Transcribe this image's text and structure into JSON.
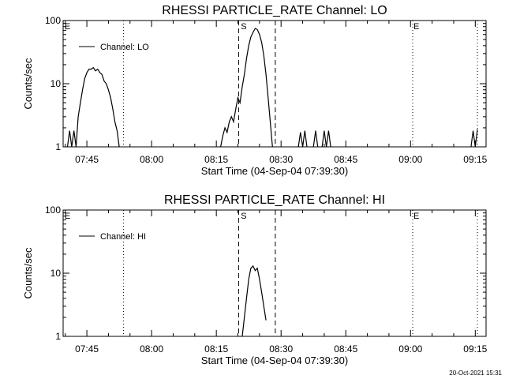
{
  "footer": {
    "timestamp": "20-Oct-2021 15:31"
  },
  "chart_data": [
    {
      "type": "line",
      "title": "RHESSI PARTICLE_RATE Channel: LO",
      "xlabel": "Start Time (04-Sep-04 07:39:30)",
      "ylabel": "Counts/sec",
      "yscale": "log",
      "ylim": [
        1,
        100
      ],
      "xlim": [
        "07:39:30",
        "09:17:30"
      ],
      "x_ticks": [
        "07:45",
        "08:00",
        "08:15",
        "08:30",
        "08:45",
        "09:00",
        "09:15"
      ],
      "y_ticks": [
        "1",
        "10",
        "100"
      ],
      "legend": {
        "label": "Channel: LO",
        "placement": "top-left"
      },
      "markers": [
        {
          "time": "07:53:30",
          "style": "dotted",
          "label": ""
        },
        {
          "time": "08:20:10",
          "style": "dashed",
          "label": ""
        },
        {
          "time": "08:28:40",
          "style": "dashed",
          "label": ""
        },
        {
          "time": "09:00:30",
          "style": "dotted",
          "label": ""
        },
        {
          "time": "09:15:30",
          "style": "dotted",
          "label": ""
        }
      ],
      "marker_labels": [
        {
          "time": "07:39:40",
          "label": "E"
        },
        {
          "time": "08:20:30",
          "label": "S"
        },
        {
          "time": "09:00:30",
          "label": "E"
        }
      ],
      "series": [
        {
          "name": "Channel: LO",
          "color": "#000000",
          "segments": [
            {
              "t": [
                "07:40:30",
                "07:41:00",
                "07:41:30",
                "07:42:00",
                "07:42:30",
                "07:43:00",
                "07:43:30",
                "07:44:00",
                "07:44:30",
                "07:45:00",
                "07:45:30",
                "07:46:00",
                "07:46:30",
                "07:47:00",
                "07:47:30",
                "07:48:00",
                "07:48:30",
                "07:49:00",
                "07:49:30",
                "07:50:00",
                "07:50:30",
                "07:51:00",
                "07:51:30",
                "07:52:00",
                "07:52:30"
              ],
              "v": [
                1,
                1.8,
                1,
                1.8,
                1,
                3,
                5,
                8,
                12,
                15,
                17,
                17,
                18,
                16,
                17,
                15,
                14,
                11,
                10,
                8,
                6,
                4,
                2.5,
                1.8,
                1
              ]
            },
            {
              "t": [
                "08:16:00",
                "08:16:30",
                "08:17:00",
                "08:17:30",
                "08:18:00",
                "08:18:30",
                "08:19:00",
                "08:19:30",
                "08:20:00",
                "08:20:30",
                "08:21:00",
                "08:21:30",
                "08:22:00",
                "08:22:30",
                "08:23:00",
                "08:23:30",
                "08:24:00",
                "08:24:30",
                "08:25:00",
                "08:25:30",
                "08:26:00",
                "08:26:30",
                "08:27:00",
                "08:27:30",
                "08:28:00"
              ],
              "v": [
                1,
                1.5,
                2,
                1.7,
                2.5,
                3,
                2.5,
                4,
                6,
                5,
                9,
                14,
                25,
                40,
                55,
                65,
                75,
                72,
                60,
                45,
                28,
                14,
                6,
                2.5,
                1
              ]
            },
            {
              "t": [
                "08:34:00",
                "08:34:30",
                "08:35:00",
                "08:35:30",
                "08:36:00"
              ],
              "v": [
                1,
                1.7,
                1,
                1.8,
                1
              ]
            },
            {
              "t": [
                "08:37:30",
                "08:38:00",
                "08:38:30"
              ],
              "v": [
                1,
                1.8,
                1
              ]
            },
            {
              "t": [
                "08:39:30",
                "08:40:00",
                "08:40:30",
                "08:41:00",
                "08:41:30"
              ],
              "v": [
                1,
                1.8,
                1,
                1.8,
                1
              ]
            },
            {
              "t": [
                "09:14:00",
                "09:14:30",
                "09:15:00",
                "09:15:30"
              ],
              "v": [
                1,
                1.8,
                1,
                1.9
              ]
            }
          ]
        }
      ]
    },
    {
      "type": "line",
      "title": "RHESSI PARTICLE_RATE Channel: HI",
      "xlabel": "Start Time (04-Sep-04 07:39:30)",
      "ylabel": "Counts/sec",
      "yscale": "log",
      "ylim": [
        1,
        100
      ],
      "xlim": [
        "07:39:30",
        "09:17:30"
      ],
      "x_ticks": [
        "07:45",
        "08:00",
        "08:15",
        "08:30",
        "08:45",
        "09:00",
        "09:15"
      ],
      "y_ticks": [
        "1",
        "10",
        "100"
      ],
      "legend": {
        "label": "Channel: HI",
        "placement": "top-left"
      },
      "markers": [
        {
          "time": "07:53:30",
          "style": "dotted",
          "label": ""
        },
        {
          "time": "08:20:10",
          "style": "dashed",
          "label": ""
        },
        {
          "time": "08:28:40",
          "style": "dashed",
          "label": ""
        },
        {
          "time": "09:00:30",
          "style": "dotted",
          "label": ""
        },
        {
          "time": "09:15:30",
          "style": "dotted",
          "label": ""
        }
      ],
      "marker_labels": [
        {
          "time": "07:39:40",
          "label": "E"
        },
        {
          "time": "08:20:30",
          "label": "S"
        },
        {
          "time": "09:00:30",
          "label": "E"
        }
      ],
      "series": [
        {
          "name": "Channel: HI",
          "color": "#000000",
          "segments": [
            {
              "t": [
                "08:21:00",
                "08:21:30",
                "08:22:00",
                "08:22:30",
                "08:23:00",
                "08:23:30",
                "08:24:00",
                "08:24:30",
                "08:25:00",
                "08:25:30",
                "08:26:00",
                "08:26:30"
              ],
              "v": [
                1,
                2,
                4,
                8,
                12,
                13,
                11,
                12,
                8,
                5,
                3,
                1.8
              ]
            }
          ]
        }
      ]
    }
  ]
}
